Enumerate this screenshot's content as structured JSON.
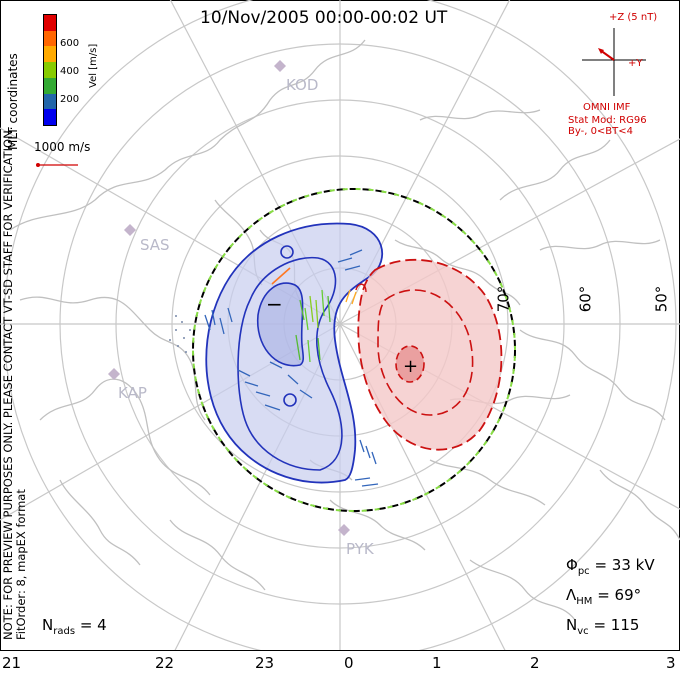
{
  "title": "10/Nov/2005 00:00-00:02 UT",
  "colorbar": {
    "label": "Vel [m/s]",
    "ticks": [
      "600",
      "400",
      "200"
    ],
    "colors": [
      "#e00000",
      "#ff6600",
      "#ffaa00",
      "#88cc00",
      "#33aa33",
      "#2266aa",
      "#0000ee"
    ]
  },
  "coordinate_label": "MLT coordinates",
  "vector_scale_label": "1000 m/s",
  "side_note": {
    "line1": "NOTE: FOR PREVIEW PURPOSES ONLY. PLEASE CONTACT VT-SD STAFF FOR VERIFICATION.",
    "line2": "FitOrder: 8, mapEX format"
  },
  "imf": {
    "z_label": "+Z (5 nT)",
    "y_label": "+Y",
    "source": "OMNI IMF",
    "stat_mod": "Stat Mod: RG96",
    "condition": "By-, 0<BT<4"
  },
  "stations": [
    "KOD",
    "SAS",
    "KAP",
    "PYK"
  ],
  "latitude_labels": [
    "70°",
    "60°",
    "50°"
  ],
  "hour_labels": [
    "21",
    "22",
    "23",
    "0",
    "1",
    "2",
    "3"
  ],
  "stats": {
    "phi_symbol": "Φ",
    "phi_sub": "pc",
    "phi_value": "= 33 kV",
    "lambda_symbol": "Λ",
    "lambda_sub": "HM",
    "lambda_value": "= 69°",
    "nvc_symbol": "N",
    "nvc_sub": "vc",
    "nvc_value": "= 115",
    "nrads_symbol": "N",
    "nrads_sub": "rads",
    "nrads_value": "= 4"
  },
  "markers": {
    "min": "−",
    "max": "+"
  },
  "colors": {
    "negative_cell": "#2233bb",
    "positive_cell": "#cc1111",
    "grid": "#c8c8c8",
    "imf": "#d00000"
  }
}
